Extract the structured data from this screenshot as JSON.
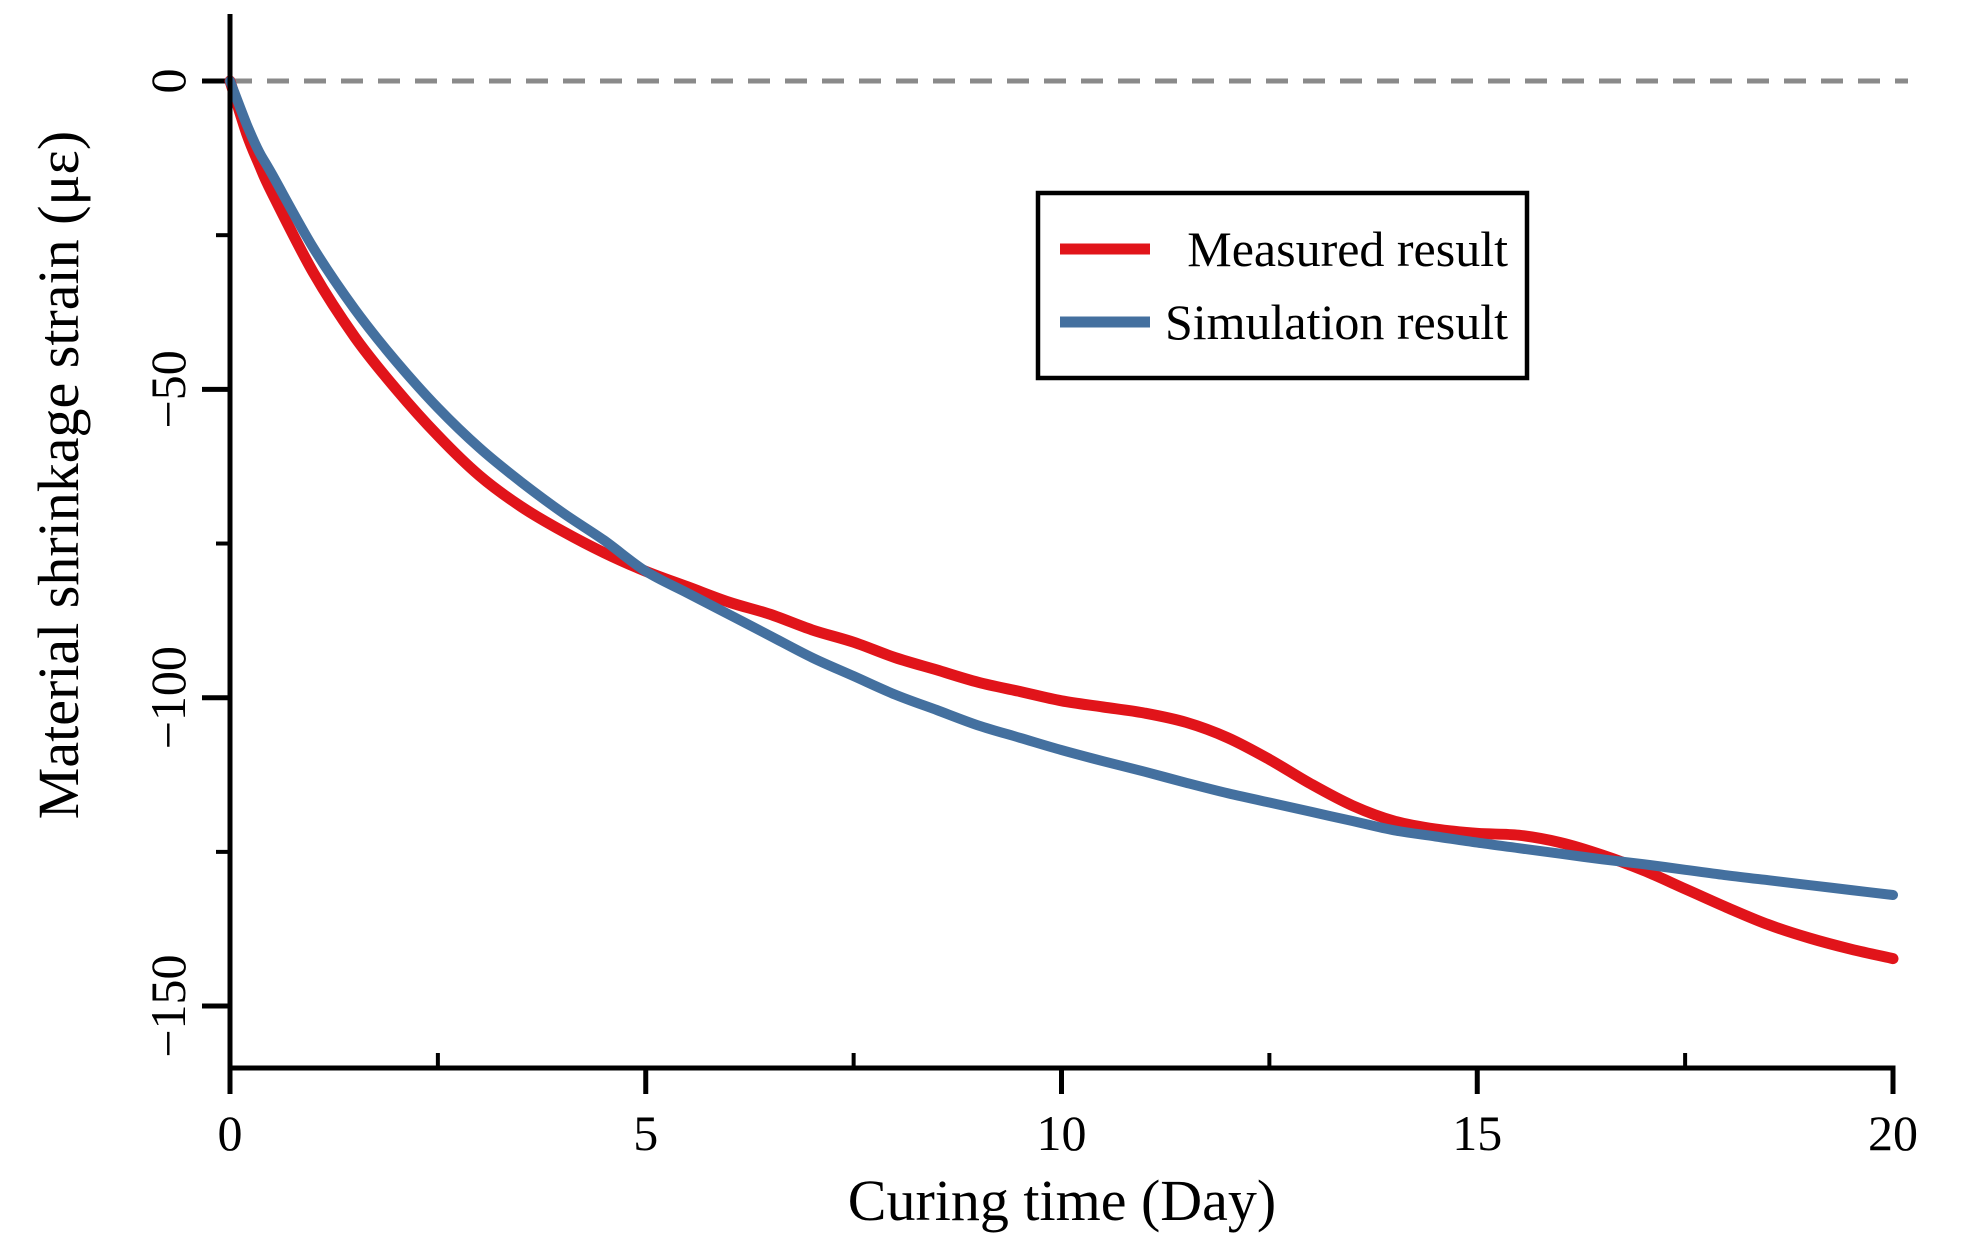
{
  "figure": {
    "background": "#ffffff",
    "axis_color": "#000000",
    "zero_line_color": "#8a8a8a"
  },
  "chart_data": {
    "type": "line",
    "title": "",
    "xlabel": "Curing time (Day)",
    "ylabel": "Material shrinkage strain (με)",
    "xlim": [
      0,
      20
    ],
    "ylim": [
      -160,
      11
    ],
    "grid": false,
    "x_major_ticks": [
      0,
      5,
      10,
      15,
      20
    ],
    "x_minor_ticks": [
      2.5,
      7.5,
      12.5,
      17.5
    ],
    "x_tick_labels": [
      "0",
      "5",
      "10",
      "15",
      "20"
    ],
    "y_major_ticks": [
      0,
      -50,
      -100,
      -150
    ],
    "y_minor_ticks": [
      -25,
      -75,
      -125
    ],
    "y_tick_labels": [
      "0",
      "−50",
      "−100",
      "−150"
    ],
    "zero_reference_line": {
      "y": 0,
      "style": "dashed",
      "color": "#8a8a8a"
    },
    "legend": {
      "position": "upper-right",
      "border_color": "#000000",
      "entries": [
        {
          "label": "Measured result",
          "color": "#e1141a"
        },
        {
          "label": "Simulation result",
          "color": "#44709f"
        }
      ]
    },
    "series": [
      {
        "name": "Measured result",
        "color": "#e1141a",
        "width": 11,
        "points": [
          [
            0,
            0
          ],
          [
            0.2,
            -8.5
          ],
          [
            0.35,
            -13.5
          ],
          [
            0.5,
            -18
          ],
          [
            1,
            -31
          ],
          [
            1.5,
            -41.5
          ],
          [
            2,
            -50
          ],
          [
            2.5,
            -57.5
          ],
          [
            3,
            -64
          ],
          [
            3.5,
            -69
          ],
          [
            4,
            -73
          ],
          [
            4.5,
            -76.5
          ],
          [
            5,
            -79.5
          ],
          [
            5.5,
            -82
          ],
          [
            6,
            -84.5
          ],
          [
            6.5,
            -86.5
          ],
          [
            7,
            -89
          ],
          [
            7.5,
            -91
          ],
          [
            8,
            -93.5
          ],
          [
            8.5,
            -95.5
          ],
          [
            9,
            -97.5
          ],
          [
            9.5,
            -99
          ],
          [
            10,
            -100.5
          ],
          [
            10.5,
            -101.5
          ],
          [
            11,
            -102.5
          ],
          [
            11.5,
            -104
          ],
          [
            12,
            -106.5
          ],
          [
            12.5,
            -110
          ],
          [
            13,
            -114
          ],
          [
            13.5,
            -117.5
          ],
          [
            14,
            -120
          ],
          [
            14.5,
            -121.3
          ],
          [
            15,
            -122
          ],
          [
            15.5,
            -122.3
          ],
          [
            16,
            -123.5
          ],
          [
            16.5,
            -125.5
          ],
          [
            17,
            -128
          ],
          [
            17.5,
            -131
          ],
          [
            18,
            -134
          ],
          [
            18.5,
            -136.8
          ],
          [
            19,
            -139
          ],
          [
            19.5,
            -140.8
          ],
          [
            20,
            -142.3
          ]
        ]
      },
      {
        "name": "Simulation result",
        "color": "#44709f",
        "width": 10,
        "points": [
          [
            0,
            0
          ],
          [
            0.2,
            -7
          ],
          [
            0.35,
            -11.5
          ],
          [
            0.5,
            -15
          ],
          [
            1,
            -27
          ],
          [
            1.5,
            -37
          ],
          [
            2,
            -45.5
          ],
          [
            2.5,
            -53
          ],
          [
            3,
            -59.5
          ],
          [
            3.5,
            -65
          ],
          [
            4,
            -70
          ],
          [
            4.5,
            -74.5
          ],
          [
            5,
            -79.5
          ],
          [
            5.5,
            -83
          ],
          [
            6,
            -86.5
          ],
          [
            6.5,
            -90
          ],
          [
            7,
            -93.5
          ],
          [
            7.5,
            -96.5
          ],
          [
            8,
            -99.5
          ],
          [
            8.5,
            -102
          ],
          [
            9,
            -104.5
          ],
          [
            9.5,
            -106.5
          ],
          [
            10,
            -108.5
          ],
          [
            10.5,
            -110.3
          ],
          [
            11,
            -112
          ],
          [
            11.5,
            -113.8
          ],
          [
            12,
            -115.5
          ],
          [
            12.5,
            -117
          ],
          [
            13,
            -118.5
          ],
          [
            13.5,
            -120
          ],
          [
            14,
            -121.5
          ],
          [
            14.5,
            -122.5
          ],
          [
            15,
            -123.5
          ],
          [
            15.5,
            -124.4
          ],
          [
            16,
            -125.3
          ],
          [
            16.5,
            -126.2
          ],
          [
            17,
            -127
          ],
          [
            17.5,
            -127.9
          ],
          [
            18,
            -128.8
          ],
          [
            18.5,
            -129.6
          ],
          [
            19,
            -130.4
          ],
          [
            19.5,
            -131.2
          ],
          [
            20,
            -132
          ]
        ]
      }
    ]
  }
}
